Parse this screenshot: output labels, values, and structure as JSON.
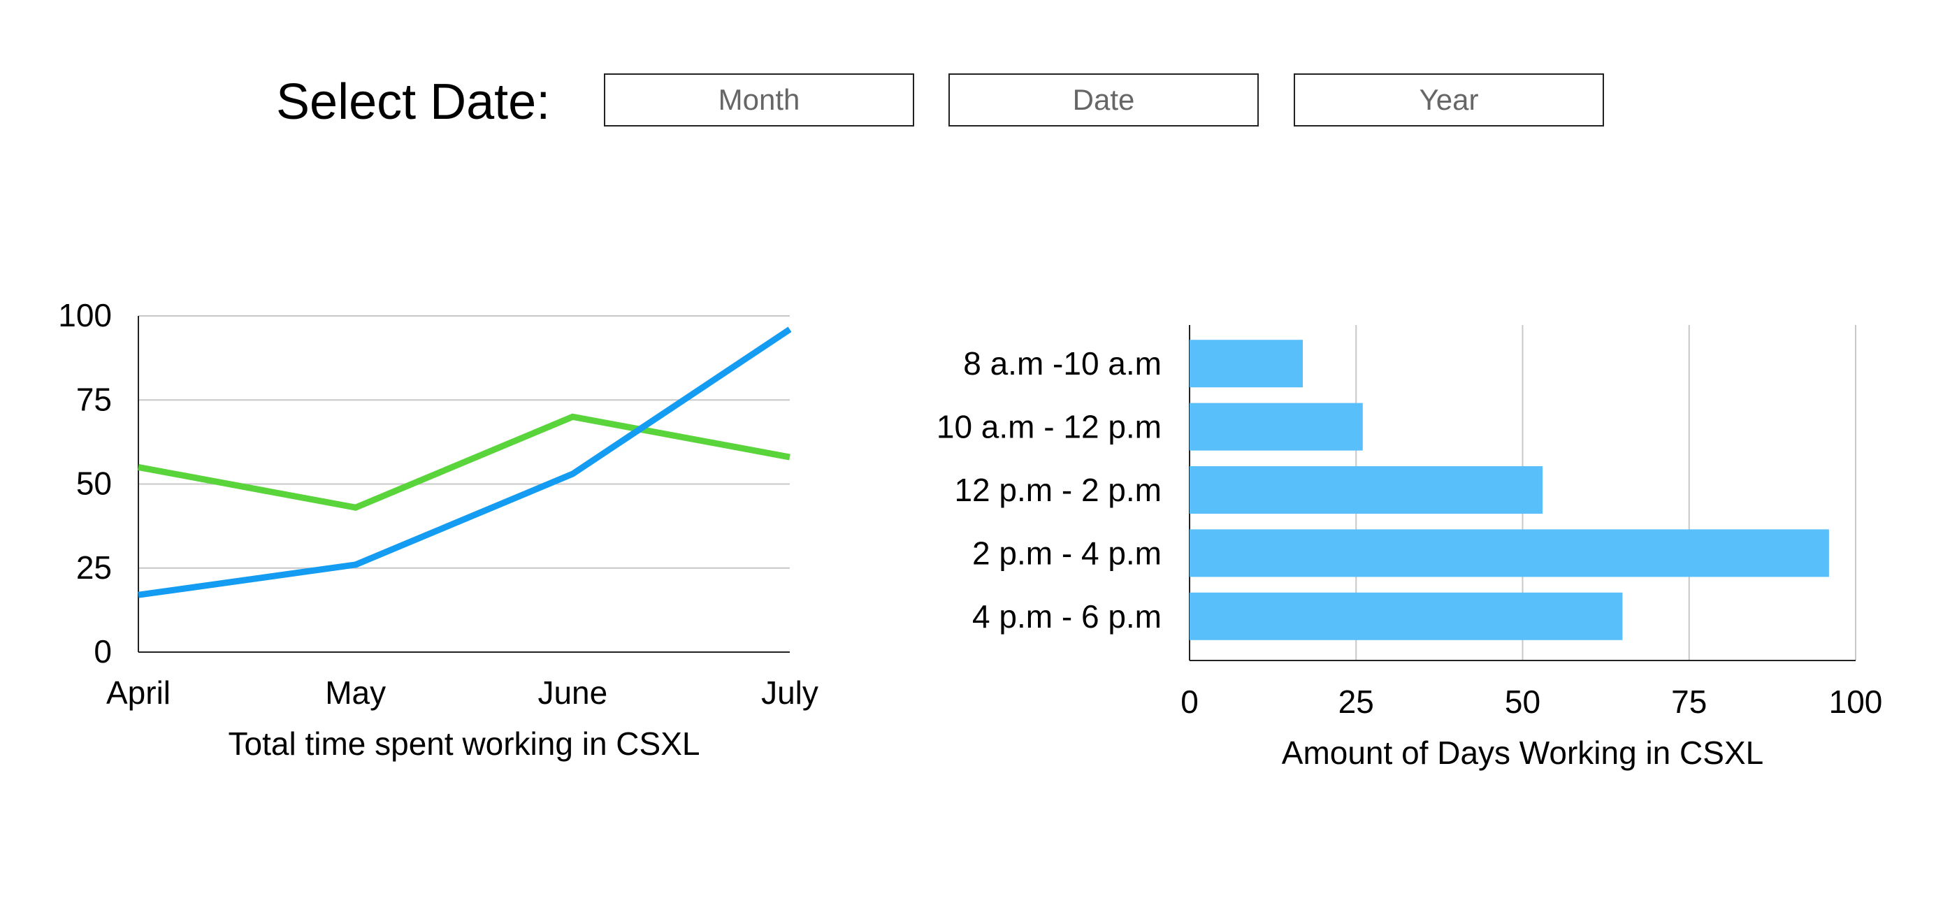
{
  "date_selector": {
    "label": "Select Date:",
    "month_placeholder": "Month",
    "date_placeholder": "Date",
    "year_placeholder": "Year"
  },
  "colors": {
    "series_green": "#5ad43b",
    "series_blue": "#139cf2",
    "bar_fill": "#58bffb",
    "gridline": "#c8c8c8",
    "axis": "#222222"
  },
  "chart_data": [
    {
      "type": "line",
      "title": "",
      "xlabel": "Total time spent working in CSXL",
      "ylabel": "",
      "categories": [
        "April",
        "May",
        "June",
        "July"
      ],
      "ylim": [
        0,
        100
      ],
      "yticks": [
        "0",
        "25",
        "50",
        "75",
        "100"
      ],
      "grid": true,
      "series": [
        {
          "color": "#5ad43b",
          "values": [
            55,
            43,
            70,
            58
          ]
        },
        {
          "color": "#139cf2",
          "values": [
            17,
            26,
            53,
            96
          ]
        }
      ]
    },
    {
      "type": "bar",
      "orientation": "horizontal",
      "title": "",
      "xlabel": "Amount of Days Working in CSXL",
      "ylabel": "",
      "categories": [
        "8 a.m -10 a.m",
        "10 a.m - 12 p.m",
        "12 p.m - 2 p.m",
        "2 p.m - 4 p.m",
        "4 p.m - 6 p.m"
      ],
      "values": [
        17,
        26,
        53,
        96,
        65
      ],
      "xlim": [
        0,
        100
      ],
      "xticks": [
        "0",
        "25",
        "50",
        "75",
        "100"
      ],
      "grid": true
    }
  ]
}
